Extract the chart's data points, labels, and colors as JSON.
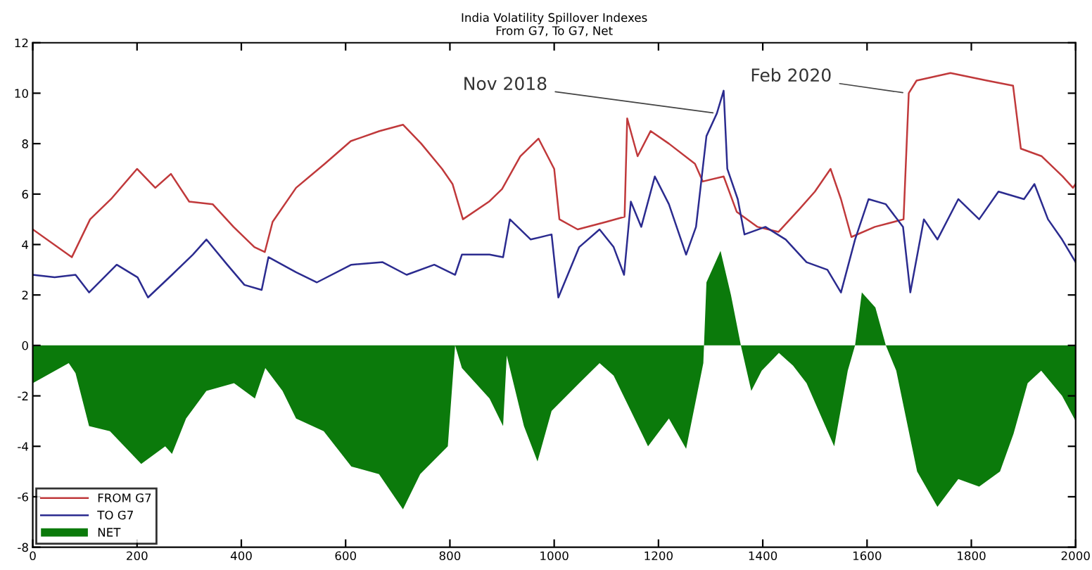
{
  "chart_data": {
    "type": "line",
    "title": "India Volatility Spillover Indexes",
    "subtitle": "From G7, To G7, Net",
    "xlim": [
      0,
      2000
    ],
    "xticks": [
      0,
      200,
      400,
      600,
      800,
      1000,
      1200,
      1400,
      1600,
      1800,
      2000
    ],
    "ylim": [
      -8,
      12
    ],
    "yticks": [
      -8,
      -6,
      -4,
      -2,
      0,
      2,
      4,
      6,
      8,
      10,
      12
    ],
    "grid": false,
    "legend": "bottom left",
    "annotations": [
      {
        "text": "Nov 2018",
        "x": 1312,
        "y": 9.2
      },
      {
        "text": "Feb 2020",
        "x": 1676,
        "y": 10.0
      }
    ],
    "series": [
      {
        "name": "FROM G7",
        "color": "#c0393b",
        "x": [
          0,
          75,
          110,
          150,
          200,
          235,
          265,
          300,
          345,
          385,
          425,
          445,
          460,
          505,
          560,
          610,
          665,
          710,
          745,
          785,
          805,
          815,
          825,
          875,
          900,
          935,
          970,
          1000,
          1010,
          1045,
          1100,
          1135,
          1140,
          1160,
          1185,
          1220,
          1270,
          1285,
          1325,
          1350,
          1390,
          1430,
          1470,
          1500,
          1530,
          1550,
          1570,
          1615,
          1670,
          1680,
          1695,
          1760,
          1830,
          1880,
          1895,
          1935,
          1975,
          1995,
          2000
        ],
        "values": [
          4.6,
          3.5,
          5.0,
          5.8,
          7.0,
          6.25,
          6.8,
          5.7,
          5.6,
          4.7,
          3.9,
          3.7,
          4.9,
          6.25,
          7.2,
          8.1,
          8.5,
          8.75,
          8.0,
          7.0,
          6.4,
          5.7,
          5.0,
          5.7,
          6.2,
          7.5,
          8.2,
          7.0,
          5.0,
          4.6,
          4.9,
          5.1,
          9.0,
          7.5,
          8.5,
          8.0,
          7.2,
          6.5,
          6.7,
          5.3,
          4.7,
          4.5,
          5.4,
          6.1,
          7.0,
          5.8,
          4.3,
          4.7,
          5.0,
          10.0,
          10.5,
          10.8,
          10.5,
          10.3,
          7.8,
          7.5,
          6.7,
          6.25,
          6.4
        ]
      },
      {
        "name": "TO G7",
        "color": "#2b2b8f",
        "x": [
          0,
          42,
          82,
          108,
          161,
          201,
          221,
          267,
          307,
          333,
          373,
          406,
          439,
          452,
          505,
          545,
          611,
          671,
          717,
          770,
          810,
          823,
          876,
          902,
          915,
          955,
          995,
          1008,
          1048,
          1087,
          1114,
          1134,
          1147,
          1167,
          1193,
          1220,
          1253,
          1272,
          1292,
          1312,
          1325,
          1332,
          1352,
          1365,
          1405,
          1444,
          1484,
          1524,
          1550,
          1577,
          1603,
          1636,
          1669,
          1683,
          1709,
          1735,
          1775,
          1815,
          1852,
          1901,
          1921,
          1947,
          1974,
          2000
        ],
        "values": [
          2.8,
          2.7,
          2.8,
          2.1,
          3.2,
          2.7,
          1.9,
          2.8,
          3.6,
          4.2,
          3.2,
          2.4,
          2.2,
          3.5,
          2.9,
          2.5,
          3.2,
          3.3,
          2.8,
          3.2,
          2.8,
          3.6,
          3.6,
          3.5,
          5.0,
          4.2,
          4.4,
          1.9,
          3.9,
          4.6,
          3.9,
          2.8,
          5.7,
          4.7,
          6.7,
          5.6,
          3.6,
          4.7,
          8.3,
          9.2,
          10.1,
          7.0,
          5.8,
          4.4,
          4.7,
          4.2,
          3.3,
          3.0,
          2.1,
          4.2,
          5.8,
          5.6,
          4.7,
          2.1,
          5.0,
          4.2,
          5.8,
          5.0,
          6.1,
          5.8,
          6.4,
          5.0,
          4.2,
          3.3
        ]
      },
      {
        "name": "NET",
        "type": "area",
        "color": "#0b7a0b",
        "x": [
          0,
          69,
          82,
          108,
          148,
          208,
          254,
          267,
          294,
          333,
          386,
          426,
          446,
          479,
          505,
          558,
          611,
          664,
          710,
          743,
          796,
          810,
          823,
          876,
          902,
          909,
          942,
          968,
          995,
          1048,
          1087,
          1114,
          1140,
          1180,
          1220,
          1253,
          1286,
          1292,
          1319,
          1339,
          1358,
          1378,
          1398,
          1431,
          1458,
          1484,
          1537,
          1563,
          1577,
          1590,
          1616,
          1636,
          1656,
          1696,
          1735,
          1775,
          1815,
          1855,
          1881,
          1908,
          1934,
          1974,
          2000
        ],
        "values": [
          -1.5,
          -0.7,
          -1.1,
          -3.2,
          -3.4,
          -4.7,
          -4.0,
          -4.3,
          -2.9,
          -1.8,
          -1.5,
          -2.1,
          -0.9,
          -1.8,
          -2.9,
          -3.4,
          -4.8,
          -5.1,
          -6.5,
          -5.1,
          -4.0,
          0,
          -0.9,
          -2.1,
          -3.2,
          -0.4,
          -3.2,
          -4.6,
          -2.6,
          -1.5,
          -0.7,
          -1.2,
          -2.3,
          -4.0,
          -2.9,
          -4.1,
          -0.7,
          2.5,
          3.75,
          2.0,
          0,
          -1.8,
          -1.0,
          -0.3,
          -0.8,
          -1.5,
          -4.0,
          -1.0,
          0,
          2.1,
          1.5,
          0,
          -1.0,
          -5.0,
          -6.4,
          -5.3,
          -5.6,
          -5.0,
          -3.5,
          -1.5,
          -1.0,
          -2.0,
          -3.0
        ]
      }
    ]
  }
}
